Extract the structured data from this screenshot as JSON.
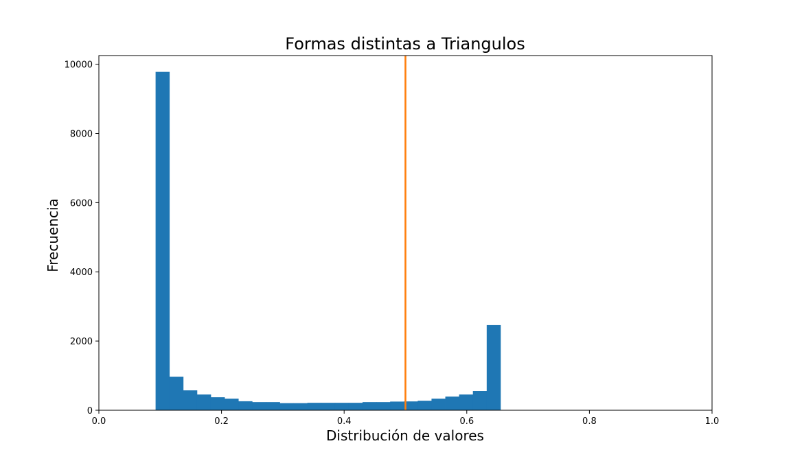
{
  "chart_data": {
    "type": "bar",
    "subtype": "histogram",
    "title": "Formas distintas a Triangulos",
    "xlabel": "Distribución de valores",
    "ylabel": "Frecuencia",
    "xlim": [
      0.0,
      1.0
    ],
    "ylim": [
      0,
      10250
    ],
    "xticks": [
      0.0,
      0.2,
      0.4,
      0.6,
      0.8,
      1.0
    ],
    "xtick_labels": [
      "0.0",
      "0.2",
      "0.4",
      "0.6",
      "0.8",
      "1.0"
    ],
    "yticks": [
      0,
      2000,
      4000,
      6000,
      8000,
      10000
    ],
    "ytick_labels": [
      "0",
      "2000",
      "4000",
      "6000",
      "8000",
      "10000"
    ],
    "bin_edges": [
      0.0925,
      0.115,
      0.1375,
      0.16,
      0.1825,
      0.205,
      0.2275,
      0.25,
      0.2725,
      0.295,
      0.3175,
      0.34,
      0.3625,
      0.385,
      0.4075,
      0.43,
      0.4525,
      0.475,
      0.4975,
      0.52,
      0.5425,
      0.565,
      0.5875,
      0.61,
      0.6325,
      0.655
    ],
    "values": [
      9780,
      970,
      575,
      455,
      375,
      335,
      260,
      235,
      235,
      205,
      205,
      215,
      215,
      215,
      215,
      235,
      235,
      250,
      255,
      275,
      335,
      395,
      455,
      555,
      2460
    ],
    "bar_color": "#1f77b4",
    "vline": {
      "x": 0.5,
      "color": "#ff7f0e"
    },
    "grid": false,
    "legend": "none"
  }
}
